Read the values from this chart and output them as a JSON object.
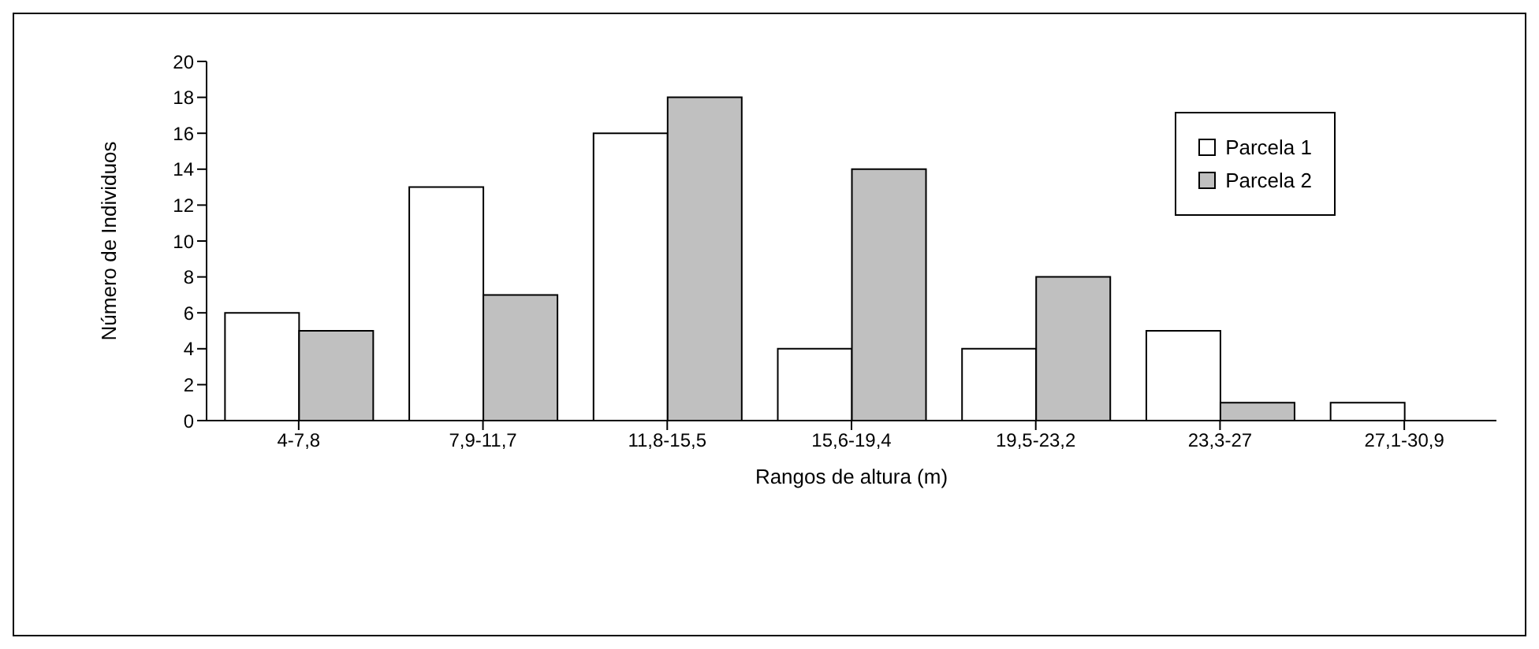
{
  "chart_data": {
    "type": "bar",
    "xlabel": "Rangos de altura (m)",
    "ylabel": "Número de Individuos",
    "categories": [
      "4-7,8",
      "7,9-11,7",
      "11,8-15,5",
      "15,6-19,4",
      "19,5-23,2",
      "23,3-27",
      "27,1-30,9"
    ],
    "series": [
      {
        "name": "Parcela 1",
        "color": "#ffffff",
        "values": [
          6,
          13,
          16,
          4,
          4,
          5,
          1
        ]
      },
      {
        "name": "Parcela 2",
        "color": "#c0c0c0",
        "values": [
          5,
          7,
          18,
          14,
          8,
          1,
          0
        ]
      }
    ],
    "ylim": [
      0,
      20
    ],
    "yticks": [
      0,
      2,
      4,
      6,
      8,
      10,
      12,
      14,
      16,
      18,
      20
    ],
    "grid": false,
    "legend": "top right"
  }
}
